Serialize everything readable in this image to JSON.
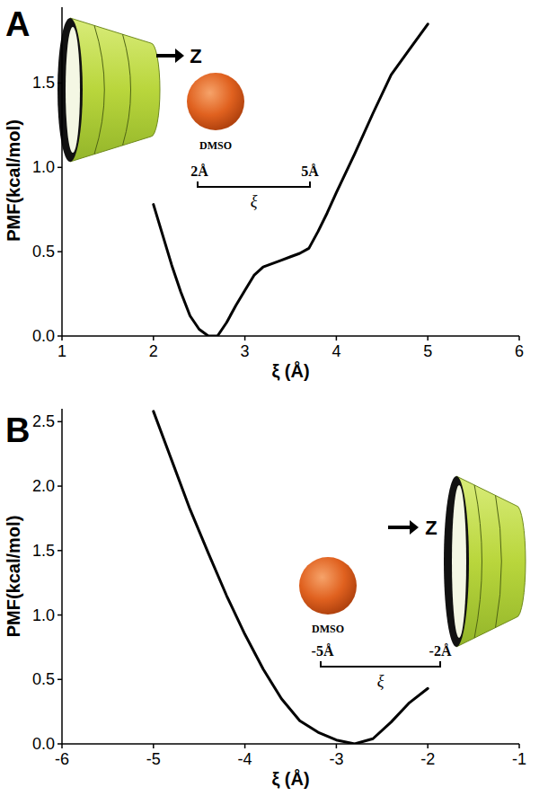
{
  "chart_data": [
    {
      "type": "line",
      "panel_label": "A",
      "x_label": "ξ (Å)",
      "y_label": "PMF(kcal/mol)",
      "x": [
        2.0,
        2.1,
        2.2,
        2.3,
        2.4,
        2.5,
        2.6,
        2.7,
        2.8,
        2.9,
        3.0,
        3.1,
        3.2,
        3.3,
        3.4,
        3.5,
        3.6,
        3.7,
        3.8,
        3.9,
        4.0,
        4.2,
        4.4,
        4.6,
        4.8,
        5.0
      ],
      "values": [
        0.78,
        0.6,
        0.42,
        0.26,
        0.12,
        0.04,
        0.0,
        0.0,
        0.08,
        0.18,
        0.27,
        0.36,
        0.41,
        0.43,
        0.45,
        0.47,
        0.49,
        0.52,
        0.62,
        0.73,
        0.85,
        1.08,
        1.32,
        1.55,
        1.7,
        1.85
      ],
      "color": "#000000",
      "xlim": [
        1,
        6
      ],
      "xticks": [
        1,
        2,
        3,
        4,
        5,
        6
      ],
      "ylim": [
        0,
        1.95
      ],
      "yticks": [
        {
          "value": 0,
          "label": "0.0"
        },
        {
          "value": 0.5,
          "label": "0.5"
        },
        {
          "value": 1.0,
          "label": "1.0"
        },
        {
          "value": 1.5,
          "label": "1.5"
        }
      ],
      "annotations": [
        "Z",
        "DMSO",
        "2Å",
        "5Å",
        "ξ"
      ]
    },
    {
      "type": "line",
      "panel_label": "B",
      "x_label": "ξ (Å)",
      "y_label": "PMF(kcal/mol)",
      "x": [
        -5.0,
        -4.8,
        -4.6,
        -4.4,
        -4.2,
        -4.0,
        -3.8,
        -3.6,
        -3.4,
        -3.2,
        -3.0,
        -2.8,
        -2.6,
        -2.4,
        -2.2,
        -2.0
      ],
      "values": [
        2.58,
        2.2,
        1.82,
        1.48,
        1.15,
        0.85,
        0.58,
        0.35,
        0.18,
        0.09,
        0.03,
        0.0,
        0.04,
        0.17,
        0.32,
        0.43
      ],
      "color": "#000000",
      "xlim": [
        -6,
        -1
      ],
      "xticks": [
        -6,
        -5,
        -4,
        -3,
        -2,
        -1
      ],
      "ylim": [
        0,
        2.6
      ],
      "yticks": [
        {
          "value": 0,
          "label": "0.0"
        },
        {
          "value": 0.5,
          "label": "0.5"
        },
        {
          "value": 1.0,
          "label": "1.0"
        },
        {
          "value": 1.5,
          "label": "1.5"
        },
        {
          "value": 2.0,
          "label": "2.0"
        },
        {
          "value": 2.5,
          "label": "2.5"
        }
      ],
      "annotations": [
        "Z",
        "DMSO",
        "-5Å",
        "-2Å",
        "ξ"
      ]
    }
  ]
}
